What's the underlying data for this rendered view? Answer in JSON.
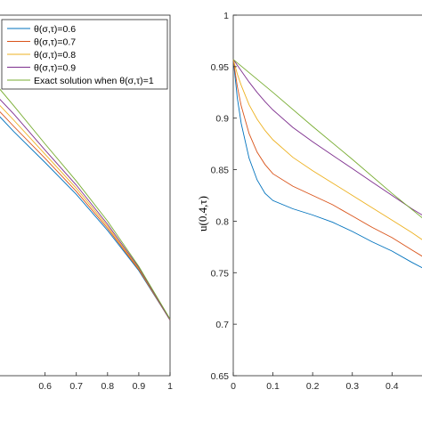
{
  "chart_data": [
    {
      "type": "line",
      "xlim": [
        0.45,
        1
      ],
      "ylim": [
        0.65,
        1
      ],
      "x_ticks": [
        "0.6",
        "0.7",
        "0.8",
        "0.9",
        "1"
      ],
      "xlabel": "",
      "ylabel": "",
      "legend_position": "top-right",
      "series": [
        {
          "name": "θ(σ,τ)=0.6",
          "color": "#0072BD",
          "x": [
            0.45,
            0.5,
            0.6,
            0.7,
            0.8,
            0.9,
            1.0
          ],
          "y": [
            0.903,
            0.887,
            0.857,
            0.826,
            0.791,
            0.752,
            0.704
          ]
        },
        {
          "name": "θ(σ,τ)=0.7",
          "color": "#D95319",
          "x": [
            0.45,
            0.5,
            0.6,
            0.7,
            0.8,
            0.9,
            1.0
          ],
          "y": [
            0.908,
            0.892,
            0.861,
            0.829,
            0.793,
            0.753,
            0.704
          ]
        },
        {
          "name": "θ(σ,τ)=0.8",
          "color": "#EDB120",
          "x": [
            0.45,
            0.5,
            0.6,
            0.7,
            0.8,
            0.9,
            1.0
          ],
          "y": [
            0.914,
            0.898,
            0.865,
            0.832,
            0.795,
            0.754,
            0.704
          ]
        },
        {
          "name": "θ(σ,τ)=0.9",
          "color": "#7E2F8E",
          "x": [
            0.45,
            0.5,
            0.6,
            0.7,
            0.8,
            0.9,
            1.0
          ],
          "y": [
            0.92,
            0.904,
            0.869,
            0.835,
            0.797,
            0.755,
            0.704
          ]
        },
        {
          "name": "Exact solution when θ(σ,τ)=1",
          "color": "#77AC30",
          "x": [
            0.45,
            0.5,
            0.6,
            0.7,
            0.8,
            0.9,
            1.0
          ],
          "y": [
            0.93,
            0.912,
            0.875,
            0.839,
            0.8,
            0.756,
            0.705
          ]
        }
      ]
    },
    {
      "type": "line",
      "xlim": [
        0,
        0.48
      ],
      "ylim": [
        0.65,
        1
      ],
      "x_ticks": [
        "0",
        "0.1",
        "0.2",
        "0.3",
        "0.4"
      ],
      "y_ticks": [
        "0.65",
        "0.7",
        "0.75",
        "0.8",
        "0.85",
        "0.9",
        "0.95",
        "1"
      ],
      "xlabel": "",
      "ylabel": "u(0.4,τ)",
      "series": [
        {
          "name": "θ(σ,τ)=0.6",
          "color": "#0072BD",
          "x": [
            0,
            0.01,
            0.02,
            0.04,
            0.06,
            0.08,
            0.1,
            0.15,
            0.2,
            0.25,
            0.3,
            0.35,
            0.4,
            0.45,
            0.48
          ],
          "y": [
            0.957,
            0.92,
            0.895,
            0.861,
            0.84,
            0.827,
            0.82,
            0.812,
            0.806,
            0.799,
            0.79,
            0.78,
            0.771,
            0.76,
            0.754
          ]
        },
        {
          "name": "θ(σ,τ)=0.7",
          "color": "#D95319",
          "x": [
            0,
            0.01,
            0.02,
            0.04,
            0.06,
            0.08,
            0.1,
            0.15,
            0.2,
            0.25,
            0.3,
            0.35,
            0.4,
            0.45,
            0.48
          ],
          "y": [
            0.957,
            0.931,
            0.912,
            0.885,
            0.867,
            0.855,
            0.846,
            0.834,
            0.825,
            0.816,
            0.805,
            0.794,
            0.784,
            0.772,
            0.765
          ]
        },
        {
          "name": "θ(σ,τ)=0.8",
          "color": "#EDB120",
          "x": [
            0,
            0.01,
            0.02,
            0.04,
            0.06,
            0.08,
            0.1,
            0.15,
            0.2,
            0.25,
            0.3,
            0.35,
            0.4,
            0.45,
            0.48
          ],
          "y": [
            0.957,
            0.943,
            0.932,
            0.913,
            0.899,
            0.888,
            0.879,
            0.862,
            0.849,
            0.837,
            0.825,
            0.813,
            0.801,
            0.789,
            0.781
          ]
        },
        {
          "name": "θ(σ,τ)=0.9",
          "color": "#7E2F8E",
          "x": [
            0,
            0.02,
            0.04,
            0.06,
            0.08,
            0.1,
            0.15,
            0.2,
            0.25,
            0.3,
            0.35,
            0.4,
            0.45,
            0.48
          ],
          "y": [
            0.957,
            0.946,
            0.935,
            0.925,
            0.916,
            0.908,
            0.891,
            0.877,
            0.864,
            0.851,
            0.838,
            0.825,
            0.812,
            0.805
          ]
        },
        {
          "name": "Exact solution when θ(σ,τ)=1",
          "color": "#77AC30",
          "x": [
            0,
            0.1,
            0.2,
            0.3,
            0.4,
            0.48
          ],
          "y": [
            0.957,
            0.925,
            0.892,
            0.86,
            0.827,
            0.802
          ]
        }
      ]
    }
  ]
}
